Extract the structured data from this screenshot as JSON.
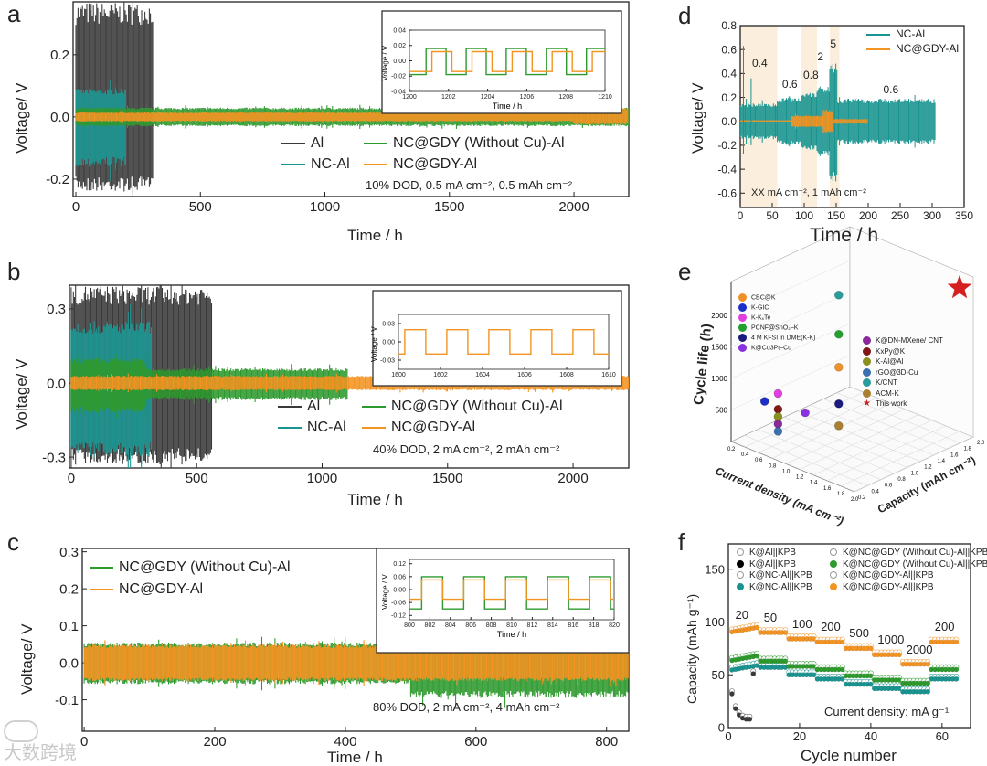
{
  "colors": {
    "al": "#3a3a3a",
    "nc_al": "#1a9490",
    "nc_gdy_wocu": "#2e9a2e",
    "nc_gdy": "#f39321",
    "shade": "#fbeedd",
    "star": "#d42020"
  },
  "watermark": "大数跨境",
  "chart_data": [
    {
      "panel": "a",
      "type": "line",
      "xlabel": "Time / h",
      "ylabel": "Voltage/ V",
      "xlim": [
        -11,
        2220
      ],
      "ylim": [
        -0.256,
        0.37
      ],
      "xticks": [
        0,
        500,
        1000,
        1500,
        2000
      ],
      "yticks": [
        -0.2,
        0.0,
        0.2
      ],
      "legend": [
        "Al",
        "NC-Al",
        "NC@GDY (Without Cu)-Al",
        "NC@GDY-Al"
      ],
      "annotation": "10% DOD, 0.5 mA cm⁻², 0.5 mAh cm⁻²",
      "series": [
        {
          "name": "Al",
          "color": "al",
          "segments": [
            [
              0,
              310,
              0.37,
              -0.24
            ]
          ]
        },
        {
          "name": "NC-Al",
          "color": "nc_al",
          "segments": [
            [
              0,
              200,
              0.09,
              -0.16
            ]
          ]
        },
        {
          "name": "NC@GDY (Without Cu)-Al",
          "color": "nc_gdy_wocu",
          "segments": [
            [
              0,
              2220,
              0.03,
              -0.03
            ]
          ]
        },
        {
          "name": "NC@GDY-Al",
          "color": "nc_gdy",
          "segments": [
            [
              0,
              2000,
              0.015,
              -0.015
            ],
            [
              2000,
              2220,
              0.03,
              -0.025
            ]
          ]
        }
      ],
      "inset": {
        "xlabel": "Time / h",
        "ylabel": "Voltage / V",
        "xlim": [
          1200,
          1210
        ],
        "ylim": [
          -0.04,
          0.04
        ],
        "xticks": [
          1200,
          1202,
          1204,
          1206,
          1208,
          1210
        ],
        "yticks": [
          -0.04,
          -0.02,
          0.0,
          0.02,
          0.04
        ],
        "series": [
          {
            "name": "NC@GDY (Without Cu)-Al",
            "color": "nc_gdy_wocu",
            "period": 2.05,
            "rise": 0.85,
            "hi": 0.016,
            "lo": -0.018
          },
          {
            "name": "NC@GDY-Al",
            "color": "nc_gdy",
            "period": 2.05,
            "rise": 1.15,
            "hi": 0.012,
            "lo": -0.014
          }
        ]
      }
    },
    {
      "panel": "b",
      "type": "line",
      "xlabel": "Time / h",
      "ylabel": "Voltage/ V",
      "xlim": [
        -7,
        2222
      ],
      "ylim": [
        -0.344,
        0.396
      ],
      "xticks": [
        0,
        500,
        1000,
        1500,
        2000
      ],
      "yticks": [
        -0.3,
        0.0,
        0.3
      ],
      "legend": [
        "Al",
        "NC-Al",
        "NC@GDY (Without Cu)-Al",
        "NC@GDY-Al"
      ],
      "annotation": "40% DOD,  2 mA cm⁻², 2 mAh cm⁻²",
      "series": [
        {
          "name": "Al",
          "color": "al",
          "segments": [
            [
              0,
              560,
              0.396,
              -0.33
            ]
          ]
        },
        {
          "name": "NC-Al",
          "color": "nc_al",
          "segments": [
            [
              0,
              320,
              0.25,
              -0.3
            ]
          ]
        },
        {
          "name": "NC@GDY (Without Cu)-Al",
          "color": "nc_gdy_wocu",
          "segments": [
            [
              0,
              300,
              0.1,
              -0.12
            ],
            [
              300,
              1100,
              0.06,
              -0.07
            ]
          ]
        },
        {
          "name": "NC@GDY-Al",
          "color": "nc_gdy",
          "segments": [
            [
              0,
              2222,
              0.03,
              -0.03
            ]
          ]
        }
      ],
      "inset": {
        "xlabel": "",
        "ylabel": "Voltage / V",
        "xlim": [
          1600,
          1610
        ],
        "ylim": [
          -0.045,
          0.045
        ],
        "xticks": [
          1600,
          1602,
          1604,
          1606,
          1608,
          1610
        ],
        "yticks": [
          -0.03,
          0.0,
          0.03
        ],
        "series": [
          {
            "name": "NC@GDY-Al",
            "color": "nc_gdy",
            "period": 2.0,
            "rise": 0.3,
            "hi": 0.02,
            "lo": -0.02
          }
        ]
      }
    },
    {
      "panel": "c",
      "type": "line",
      "xlabel": "Time / h",
      "ylabel": "Voltage/ V",
      "xlim": [
        -3,
        834
      ],
      "ylim": [
        -0.185,
        0.309
      ],
      "xticks": [
        0,
        200,
        400,
        600,
        800
      ],
      "yticks": [
        -0.1,
        0.0,
        0.1,
        0.2,
        0.3
      ],
      "legend": [
        "NC@GDY (Without Cu)-Al",
        "NC@GDY-Al"
      ],
      "annotation": "80% DOD,  2 mA cm⁻², 4 mAh cm⁻²",
      "series": [
        {
          "name": "NC@GDY (Without Cu)-Al",
          "color": "nc_gdy_wocu",
          "segments": [
            [
              0,
              500,
              0.055,
              -0.058
            ],
            [
              500,
              834,
              0.062,
              -0.095
            ]
          ]
        },
        {
          "name": "NC@GDY-Al",
          "color": "nc_gdy",
          "segments": [
            [
              0,
              834,
              0.05,
              -0.05
            ]
          ]
        }
      ],
      "inset": {
        "xlabel": "Time / h",
        "ylabel": "Voltage / V",
        "xlim": [
          800,
          820
        ],
        "ylim": [
          -0.14,
          0.14
        ],
        "xticks": [
          800,
          802,
          804,
          806,
          808,
          810,
          812,
          814,
          816,
          818,
          820
        ],
        "yticks": [
          -0.12,
          -0.06,
          0.0,
          0.06,
          0.12
        ],
        "series": [
          {
            "name": "NC@GDY (Without Cu)-Al",
            "color": "nc_gdy_wocu",
            "period": 4.1,
            "rise": 1.2,
            "hi": 0.06,
            "lo": -0.09
          },
          {
            "name": "NC@GDY-Al",
            "color": "nc_gdy",
            "period": 4.1,
            "rise": 1.2,
            "hi": 0.045,
            "lo": -0.045
          }
        ]
      }
    },
    {
      "panel": "d",
      "type": "line",
      "xlabel": "Time / h",
      "ylabel": "Voltage/ V",
      "xlim": [
        0,
        350
      ],
      "ylim": [
        -0.72,
        0.8
      ],
      "xticks": [
        0,
        50,
        100,
        150,
        200,
        250,
        300,
        350
      ],
      "yticks": [
        -0.6,
        -0.4,
        -0.2,
        0.0,
        0.2,
        0.4,
        0.6,
        0.8
      ],
      "legend": [
        "NC-Al",
        "NC@GDY-Al"
      ],
      "annotation": "XX mA cm⁻², 1 mAh cm⁻²",
      "shaded_ranges": [
        [
          0,
          58
        ],
        [
          95,
          120
        ],
        [
          140,
          155
        ]
      ],
      "rate_labels": [
        {
          "text": "0.4",
          "t": 30,
          "v": 0.48
        },
        {
          "text": "0.6",
          "t": 77,
          "v": 0.3
        },
        {
          "text": "0.8",
          "t": 110,
          "v": 0.38
        },
        {
          "text": "2",
          "t": 132,
          "v": 0.53
        },
        {
          "text": "5",
          "t": 152,
          "v": 0.64
        },
        {
          "text": "0.6",
          "t": 235,
          "v": 0.26
        }
      ],
      "series": [
        {
          "name": "NC-Al",
          "color": "nc_al",
          "segments": [
            [
              0,
              58,
              0.15,
              -0.15
            ],
            [
              58,
              95,
              0.2,
              -0.2
            ],
            [
              95,
              120,
              0.25,
              -0.25
            ],
            [
              120,
              140,
              0.3,
              -0.3
            ],
            [
              140,
              152,
              0.5,
              -0.52
            ],
            [
              152,
              305,
              0.19,
              -0.19
            ]
          ]
        },
        {
          "name": "NC@GDY-Al",
          "color": "nc_gdy",
          "segments": [
            [
              0,
              80,
              0.01,
              -0.01
            ],
            [
              80,
              130,
              0.05,
              -0.05
            ],
            [
              130,
              145,
              0.1,
              -0.1
            ],
            [
              145,
              200,
              0.02,
              -0.02
            ]
          ]
        }
      ]
    },
    {
      "panel": "e",
      "type": "scatter3d",
      "xlabel": "Current density (mA cm⁻²)",
      "ylabel": "Capacity (mAh cm⁻²)",
      "zlabel": "Cycle life (h)",
      "xticks": [
        0.2,
        0.4,
        0.6,
        0.8,
        1.0,
        1.2,
        1.4,
        1.6,
        1.8,
        2.0
      ],
      "yticks": [
        0.2,
        0.4,
        0.6,
        0.8,
        1.0,
        1.2,
        1.4,
        1.6,
        1.8,
        2.0
      ],
      "zticks": [
        500,
        1000,
        1500,
        2000
      ],
      "points": [
        {
          "name": "CBC@K",
          "color": "#f0902a",
          "cd": 1.0,
          "cap": 1.0,
          "life": 1145,
          "legend_group": 1
        },
        {
          "name": "K-GIC",
          "color": "#1c2fc8",
          "cd": 0.4,
          "cap": 0.5,
          "life": 580,
          "legend_group": 1
        },
        {
          "name": "K-KₓTe",
          "color": "#e040e0",
          "cd": 0.5,
          "cap": 0.6,
          "life": 700,
          "legend_group": 1
        },
        {
          "name": "PCNF@SnO₂–K",
          "color": "#22a030",
          "cd": 1.0,
          "cap": 1.0,
          "life": 1667,
          "legend_group": 1
        },
        {
          "name": "4 M KFSI in DME(K-K)",
          "color": "#1a1a80",
          "cd": 1.0,
          "cap": 1.0,
          "life": 565,
          "legend_group": 1
        },
        {
          "name": "K@Cu3Pt–Cu",
          "color": "#8a30e0",
          "cd": 0.8,
          "cap": 0.7,
          "life": 480,
          "legend_group": 1
        },
        {
          "name": "K@DN-MXene/ CNT",
          "color": "#8a2a9a",
          "cd": 0.5,
          "cap": 0.6,
          "life": 217,
          "legend_group": 2
        },
        {
          "name": "KxPy@K",
          "color": "#801818",
          "cd": 0.5,
          "cap": 0.6,
          "life": 450,
          "legend_group": 2
        },
        {
          "name": "K-Al@Al",
          "color": "#8a9020",
          "cd": 0.5,
          "cap": 0.6,
          "life": 333,
          "legend_group": 2
        },
        {
          "name": "rGO@3D-Cu",
          "color": "#3a70b0",
          "cd": 0.5,
          "cap": 0.6,
          "life": 100,
          "legend_group": 2
        },
        {
          "name": "K/CNT",
          "color": "#2a9c9c",
          "cd": 1.0,
          "cap": 1.0,
          "life": 2290,
          "legend_group": 2
        },
        {
          "name": "ACM-K",
          "color": "#a88030",
          "cd": 1.0,
          "cap": 1.0,
          "life": 217,
          "legend_group": 2
        },
        {
          "name": "This work",
          "color": "#d42020",
          "cd": 1.8,
          "cap": 2.0,
          "life": 2275,
          "legend_group": 2,
          "marker": "star"
        }
      ]
    },
    {
      "panel": "f",
      "type": "scatter",
      "xlabel": "Cycle number",
      "ylabel": "Capacity (mAh g⁻¹)",
      "xlim": [
        0,
        68
      ],
      "ylim": [
        0,
        174
      ],
      "xticks": [
        0,
        20,
        40,
        60
      ],
      "yticks": [
        0,
        50,
        100,
        150
      ],
      "annotation": "Current density: mA g⁻¹",
      "rate_steps": [
        {
          "rate": "20",
          "cycles": [
            1,
            8
          ]
        },
        {
          "rate": "50",
          "cycles": [
            9,
            16
          ]
        },
        {
          "rate": "100",
          "cycles": [
            17,
            24
          ]
        },
        {
          "rate": "200",
          "cycles": [
            25,
            32
          ]
        },
        {
          "rate": "500",
          "cycles": [
            33,
            40
          ]
        },
        {
          "rate": "1000",
          "cycles": [
            41,
            48
          ]
        },
        {
          "rate": "2000",
          "cycles": [
            49,
            56
          ]
        },
        {
          "rate": "200",
          "cycles": [
            57,
            64
          ]
        }
      ],
      "legend": [
        "K@Al||KPB",
        "K@Al||KPB",
        "K@NC-Al||KPB",
        "K@NC-Al||KPB",
        "K@NC@GDY (Without Cu)-Al||KPB",
        "K@NC@GDY (Without Cu)-Al||KPB",
        "K@NC@GDY-Al||KPB",
        "K@NC@GDY-Al||KPB"
      ],
      "series": [
        {
          "name": "K@Al||KPB",
          "color": "al",
          "cycles": [
            1,
            2,
            3,
            4,
            5,
            6,
            7
          ],
          "values": [
            32,
            18,
            12,
            9,
            8,
            8,
            51
          ]
        },
        {
          "name": "K@NC-Al||KPB",
          "color": "nc_al",
          "step_values": [
            57,
            57,
            50,
            46,
            41,
            37,
            34,
            46
          ]
        },
        {
          "name": "K@NC@GDY (Without Cu)-Al||KPB",
          "color": "nc_gdy_wocu",
          "step_values": [
            66,
            63,
            58,
            55,
            49,
            45,
            42,
            55
          ]
        },
        {
          "name": "K@NC@GDY-Al||KPB",
          "color": "nc_gdy",
          "step_values": [
            93,
            90,
            84,
            81,
            75,
            69,
            60,
            81
          ]
        }
      ]
    }
  ]
}
